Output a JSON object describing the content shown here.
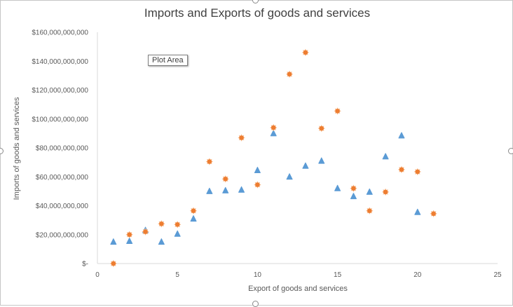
{
  "tooltip": "Plot Area",
  "chart_data": {
    "type": "scatter",
    "title": "Imports and Exports of goods and services",
    "xlabel": "Export of goods and services",
    "ylabel": "Imports of goods and services",
    "xlim": [
      0,
      25
    ],
    "ylim": [
      0,
      160000000000
    ],
    "x_ticks": [
      0,
      5,
      10,
      15,
      20,
      25
    ],
    "y_ticks": [
      0,
      20000000000,
      40000000000,
      60000000000,
      80000000000,
      100000000000,
      120000000000,
      140000000000,
      160000000000
    ],
    "y_tick_labels": [
      "$-",
      "$20,000,000,000",
      "$40,000,000,000",
      "$60,000,000,000",
      "$80,000,000,000",
      "$100,000,000,000",
      "$120,000,000,000",
      "$140,000,000,000",
      "$160,000,000,000"
    ],
    "grid": false,
    "legend": "none",
    "series": [
      {
        "color": "#5b9bd5",
        "marker": "triangle",
        "points": [
          [
            1,
            15000000000
          ],
          [
            2,
            15500000000
          ],
          [
            3,
            23000000000
          ],
          [
            4,
            15000000000
          ],
          [
            5,
            20500000000
          ],
          [
            6,
            31000000000
          ],
          [
            7,
            50000000000
          ],
          [
            8,
            50500000000
          ],
          [
            9,
            51000000000
          ],
          [
            10,
            64500000000
          ],
          [
            11,
            90000000000
          ],
          [
            12,
            60000000000
          ],
          [
            13,
            67500000000
          ],
          [
            14,
            71000000000
          ],
          [
            15,
            52000000000
          ],
          [
            16,
            46500000000
          ],
          [
            17,
            49500000000
          ],
          [
            18,
            74000000000
          ],
          [
            19,
            88500000000
          ],
          [
            20,
            35500000000
          ]
        ]
      },
      {
        "color": "#ed7d31",
        "marker": "star",
        "points": [
          [
            1,
            0
          ],
          [
            2,
            20000000000
          ],
          [
            3,
            22000000000
          ],
          [
            4,
            27500000000
          ],
          [
            5,
            27000000000
          ],
          [
            6,
            36500000000
          ],
          [
            7,
            70500000000
          ],
          [
            8,
            58500000000
          ],
          [
            9,
            87000000000
          ],
          [
            10,
            54500000000
          ],
          [
            11,
            94000000000
          ],
          [
            12,
            131000000000
          ],
          [
            13,
            146000000000
          ],
          [
            14,
            93500000000
          ],
          [
            15,
            105500000000
          ],
          [
            16,
            52000000000
          ],
          [
            17,
            36500000000
          ],
          [
            18,
            49500000000
          ],
          [
            19,
            65000000000
          ],
          [
            20,
            63500000000
          ],
          [
            21,
            34500000000
          ]
        ]
      }
    ]
  }
}
